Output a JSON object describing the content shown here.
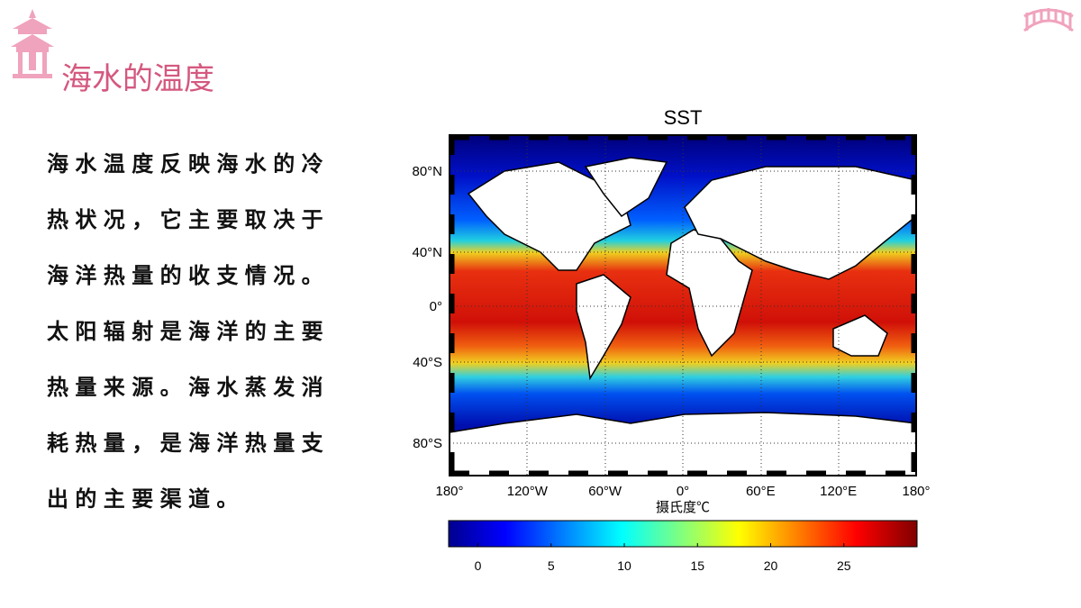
{
  "header": {
    "title": "海水的温度"
  },
  "body": {
    "lines": [
      "海水温度反映海水的冷",
      "热状况，它主要取决于",
      "海洋热量的收支情况。",
      "太阳辐射是海洋的主要",
      "热量来源。海水蒸发消",
      "耗热量，是海洋热量支",
      "出的主要渠道。"
    ]
  },
  "map": {
    "title": "SST",
    "lat_labels": [
      "80°N",
      "40°N",
      "0°",
      "40°S",
      "80°S"
    ],
    "lon_labels": [
      "180°",
      "120°W",
      "60°W",
      "0°",
      "60°E",
      "120°E",
      "180°"
    ],
    "xlabel": "摄氏度℃",
    "colorbar": {
      "lim": [
        -2,
        30
      ],
      "ticks": [
        0,
        5,
        10,
        15,
        20,
        25
      ]
    }
  }
}
